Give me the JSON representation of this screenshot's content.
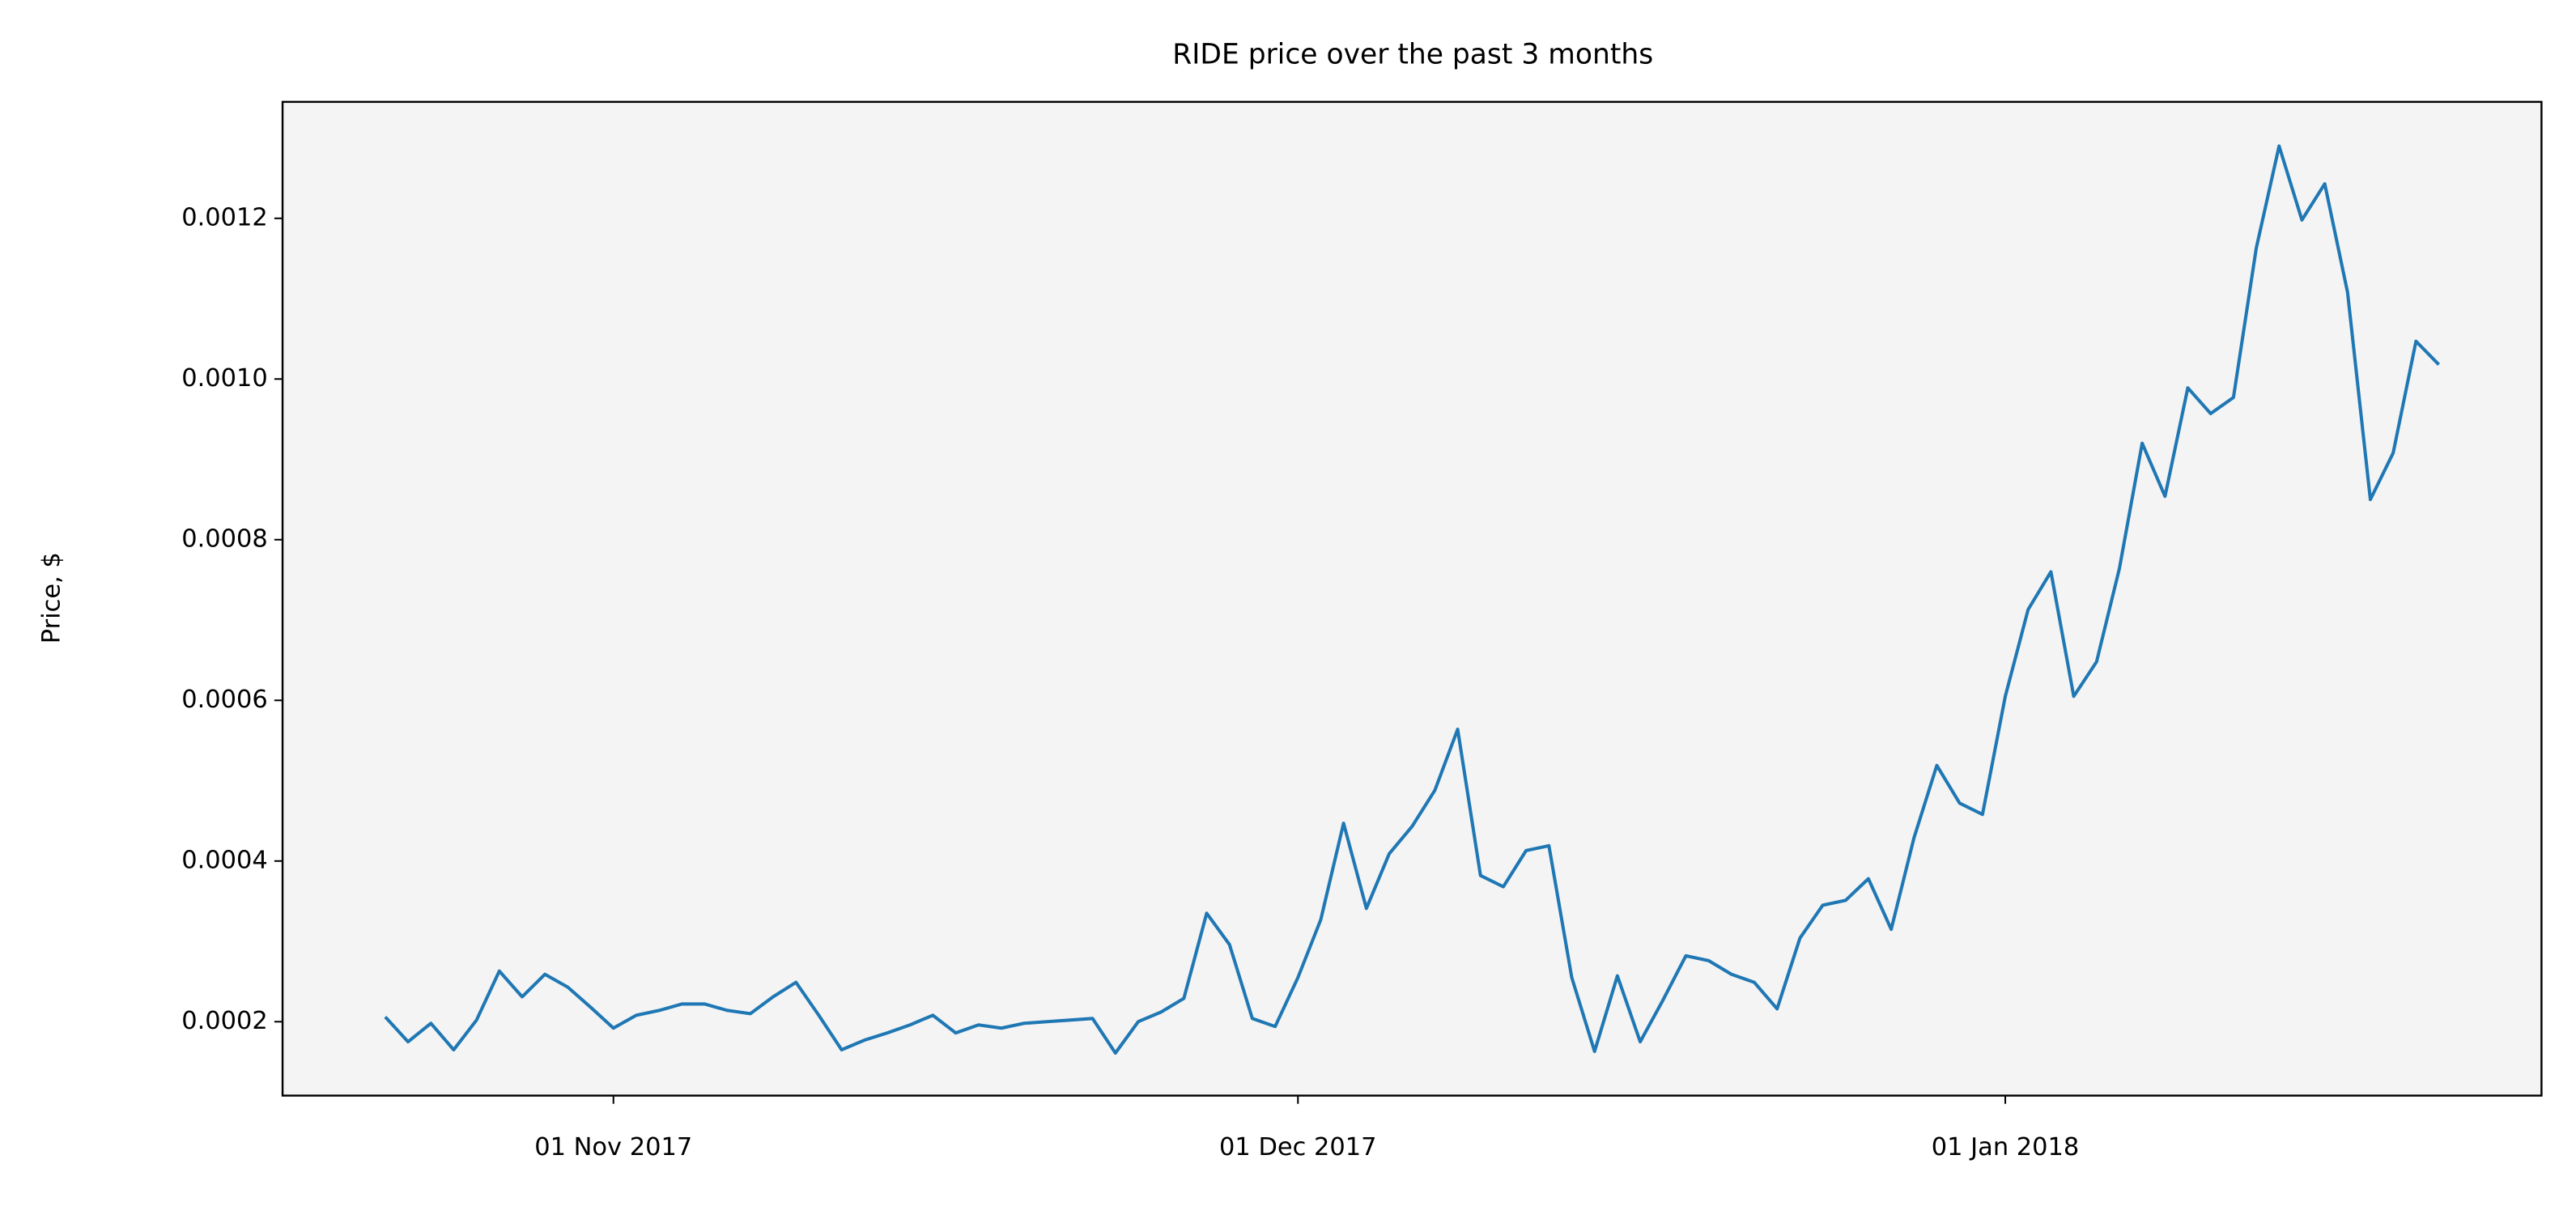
{
  "chart_data": {
    "type": "line",
    "title": "RIDE price over the past 3 months",
    "y_label": "Price, $",
    "x": [
      "2017-10-22",
      "2017-10-23",
      "2017-10-24",
      "2017-10-25",
      "2017-10-26",
      "2017-10-27",
      "2017-10-28",
      "2017-10-29",
      "2017-10-30",
      "2017-10-31",
      "2017-11-01",
      "2017-11-02",
      "2017-11-03",
      "2017-11-04",
      "2017-11-05",
      "2017-11-06",
      "2017-11-07",
      "2017-11-08",
      "2017-11-09",
      "2017-11-10",
      "2017-11-11",
      "2017-11-12",
      "2017-11-13",
      "2017-11-14",
      "2017-11-15",
      "2017-11-16",
      "2017-11-17",
      "2017-11-18",
      "2017-11-19",
      "2017-11-20",
      "2017-11-21",
      "2017-11-22",
      "2017-11-23",
      "2017-11-24",
      "2017-11-25",
      "2017-11-26",
      "2017-11-27",
      "2017-11-28",
      "2017-11-29",
      "2017-11-30",
      "2017-12-01",
      "2017-12-02",
      "2017-12-03",
      "2017-12-04",
      "2017-12-05",
      "2017-12-06",
      "2017-12-07",
      "2017-12-08",
      "2017-12-09",
      "2017-12-10",
      "2017-12-11",
      "2017-12-12",
      "2017-12-13",
      "2017-12-14",
      "2017-12-15",
      "2017-12-16",
      "2017-12-17",
      "2017-12-18",
      "2017-12-19",
      "2017-12-20",
      "2017-12-21",
      "2017-12-22",
      "2017-12-23",
      "2017-12-24",
      "2017-12-25",
      "2017-12-26",
      "2017-12-27",
      "2017-12-28",
      "2017-12-29",
      "2017-12-30",
      "2017-12-31",
      "2018-01-01",
      "2018-01-02",
      "2018-01-03",
      "2018-01-04",
      "2018-01-05",
      "2018-01-06",
      "2018-01-07",
      "2018-01-08",
      "2018-01-09",
      "2018-01-10",
      "2018-01-11",
      "2018-01-12",
      "2018-01-13",
      "2018-01-14",
      "2018-01-15",
      "2018-01-16",
      "2018-01-17",
      "2018-01-18",
      "2018-01-19",
      "2018-01-20"
    ],
    "series": [
      {
        "name": "RIDE",
        "color": "#1f77b4",
        "values": [
          0.000206,
          0.000175,
          0.000198,
          0.000165,
          0.000202,
          0.000263,
          0.000231,
          0.000259,
          0.000243,
          0.000218,
          0.000192,
          0.000208,
          0.000214,
          0.000222,
          0.000222,
          0.000214,
          0.00021,
          0.000231,
          0.000249,
          0.000208,
          0.000165,
          0.000177,
          0.000186,
          0.000196,
          0.000208,
          0.000186,
          0.000196,
          0.000192,
          0.000198,
          0.0002,
          0.000202,
          0.000204,
          0.000161,
          0.0002,
          0.000212,
          0.000229,
          0.000335,
          0.000296,
          0.000204,
          0.000194,
          0.000255,
          0.000327,
          0.000447,
          0.000341,
          0.000409,
          0.000443,
          0.000488,
          0.000564,
          0.000382,
          0.000368,
          0.000413,
          0.000419,
          0.000255,
          0.000163,
          0.000257,
          0.000175,
          0.000227,
          0.000282,
          0.000276,
          0.000259,
          0.000249,
          0.000216,
          0.000304,
          0.000345,
          0.000351,
          0.000378,
          0.000315,
          0.000429,
          0.000519,
          0.000472,
          0.000458,
          0.000605,
          0.000713,
          0.00076,
          0.000605,
          0.000648,
          0.000764,
          0.00092,
          0.000854,
          0.000989,
          0.000957,
          0.000977,
          0.001163,
          0.00129,
          0.001198,
          0.001243,
          0.001108,
          0.00085,
          0.000908,
          0.001047,
          0.001018
        ]
      }
    ],
    "xlim": [
      "2017-10-17T12:00Z",
      "2018-01-24T12:00Z"
    ],
    "xticks": [
      {
        "value": "2017-11-01",
        "label": "01 Nov 2017"
      },
      {
        "value": "2017-12-01",
        "label": "01 Dec 2017"
      },
      {
        "value": "2018-01-01",
        "label": "01 Jan 2018"
      }
    ],
    "ylim": [
      0.000108,
      0.001345
    ],
    "yticks": [
      0.0002,
      0.0004,
      0.0006,
      0.0008,
      {
        "value": 0.001,
        "label": "0.0010"
      },
      0.0012
    ],
    "background": "#f4f4f4"
  }
}
